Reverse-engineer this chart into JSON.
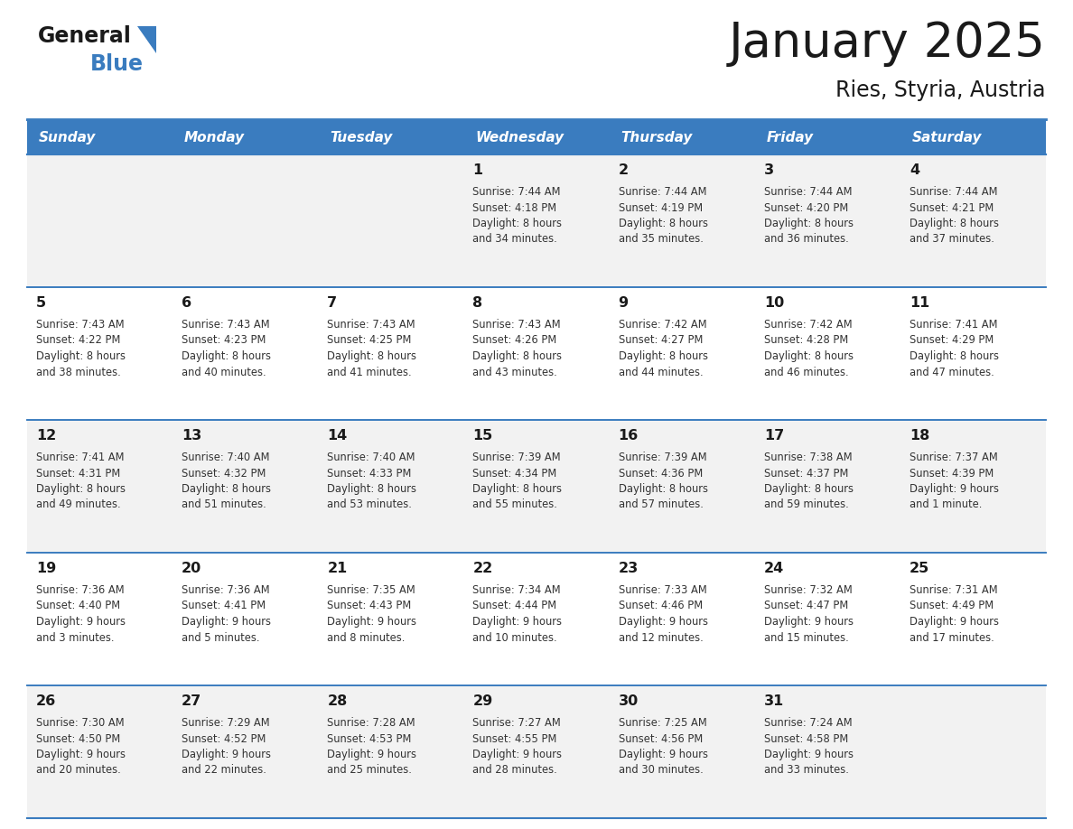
{
  "title": "January 2025",
  "subtitle": "Ries, Styria, Austria",
  "header_color": "#3a7cbf",
  "header_text_color": "#ffffff",
  "day_names": [
    "Sunday",
    "Monday",
    "Tuesday",
    "Wednesday",
    "Thursday",
    "Friday",
    "Saturday"
  ],
  "weeks": [
    [
      {
        "day": null,
        "sunrise": null,
        "sunset": null,
        "daylight_line1": null,
        "daylight_line2": null
      },
      {
        "day": null,
        "sunrise": null,
        "sunset": null,
        "daylight_line1": null,
        "daylight_line2": null
      },
      {
        "day": null,
        "sunrise": null,
        "sunset": null,
        "daylight_line1": null,
        "daylight_line2": null
      },
      {
        "day": 1,
        "sunrise": "7:44 AM",
        "sunset": "4:18 PM",
        "daylight_line1": "Daylight: 8 hours",
        "daylight_line2": "and 34 minutes."
      },
      {
        "day": 2,
        "sunrise": "7:44 AM",
        "sunset": "4:19 PM",
        "daylight_line1": "Daylight: 8 hours",
        "daylight_line2": "and 35 minutes."
      },
      {
        "day": 3,
        "sunrise": "7:44 AM",
        "sunset": "4:20 PM",
        "daylight_line1": "Daylight: 8 hours",
        "daylight_line2": "and 36 minutes."
      },
      {
        "day": 4,
        "sunrise": "7:44 AM",
        "sunset": "4:21 PM",
        "daylight_line1": "Daylight: 8 hours",
        "daylight_line2": "and 37 minutes."
      }
    ],
    [
      {
        "day": 5,
        "sunrise": "7:43 AM",
        "sunset": "4:22 PM",
        "daylight_line1": "Daylight: 8 hours",
        "daylight_line2": "and 38 minutes."
      },
      {
        "day": 6,
        "sunrise": "7:43 AM",
        "sunset": "4:23 PM",
        "daylight_line1": "Daylight: 8 hours",
        "daylight_line2": "and 40 minutes."
      },
      {
        "day": 7,
        "sunrise": "7:43 AM",
        "sunset": "4:25 PM",
        "daylight_line1": "Daylight: 8 hours",
        "daylight_line2": "and 41 minutes."
      },
      {
        "day": 8,
        "sunrise": "7:43 AM",
        "sunset": "4:26 PM",
        "daylight_line1": "Daylight: 8 hours",
        "daylight_line2": "and 43 minutes."
      },
      {
        "day": 9,
        "sunrise": "7:42 AM",
        "sunset": "4:27 PM",
        "daylight_line1": "Daylight: 8 hours",
        "daylight_line2": "and 44 minutes."
      },
      {
        "day": 10,
        "sunrise": "7:42 AM",
        "sunset": "4:28 PM",
        "daylight_line1": "Daylight: 8 hours",
        "daylight_line2": "and 46 minutes."
      },
      {
        "day": 11,
        "sunrise": "7:41 AM",
        "sunset": "4:29 PM",
        "daylight_line1": "Daylight: 8 hours",
        "daylight_line2": "and 47 minutes."
      }
    ],
    [
      {
        "day": 12,
        "sunrise": "7:41 AM",
        "sunset": "4:31 PM",
        "daylight_line1": "Daylight: 8 hours",
        "daylight_line2": "and 49 minutes."
      },
      {
        "day": 13,
        "sunrise": "7:40 AM",
        "sunset": "4:32 PM",
        "daylight_line1": "Daylight: 8 hours",
        "daylight_line2": "and 51 minutes."
      },
      {
        "day": 14,
        "sunrise": "7:40 AM",
        "sunset": "4:33 PM",
        "daylight_line1": "Daylight: 8 hours",
        "daylight_line2": "and 53 minutes."
      },
      {
        "day": 15,
        "sunrise": "7:39 AM",
        "sunset": "4:34 PM",
        "daylight_line1": "Daylight: 8 hours",
        "daylight_line2": "and 55 minutes."
      },
      {
        "day": 16,
        "sunrise": "7:39 AM",
        "sunset": "4:36 PM",
        "daylight_line1": "Daylight: 8 hours",
        "daylight_line2": "and 57 minutes."
      },
      {
        "day": 17,
        "sunrise": "7:38 AM",
        "sunset": "4:37 PM",
        "daylight_line1": "Daylight: 8 hours",
        "daylight_line2": "and 59 minutes."
      },
      {
        "day": 18,
        "sunrise": "7:37 AM",
        "sunset": "4:39 PM",
        "daylight_line1": "Daylight: 9 hours",
        "daylight_line2": "and 1 minute."
      }
    ],
    [
      {
        "day": 19,
        "sunrise": "7:36 AM",
        "sunset": "4:40 PM",
        "daylight_line1": "Daylight: 9 hours",
        "daylight_line2": "and 3 minutes."
      },
      {
        "day": 20,
        "sunrise": "7:36 AM",
        "sunset": "4:41 PM",
        "daylight_line1": "Daylight: 9 hours",
        "daylight_line2": "and 5 minutes."
      },
      {
        "day": 21,
        "sunrise": "7:35 AM",
        "sunset": "4:43 PM",
        "daylight_line1": "Daylight: 9 hours",
        "daylight_line2": "and 8 minutes."
      },
      {
        "day": 22,
        "sunrise": "7:34 AM",
        "sunset": "4:44 PM",
        "daylight_line1": "Daylight: 9 hours",
        "daylight_line2": "and 10 minutes."
      },
      {
        "day": 23,
        "sunrise": "7:33 AM",
        "sunset": "4:46 PM",
        "daylight_line1": "Daylight: 9 hours",
        "daylight_line2": "and 12 minutes."
      },
      {
        "day": 24,
        "sunrise": "7:32 AM",
        "sunset": "4:47 PM",
        "daylight_line1": "Daylight: 9 hours",
        "daylight_line2": "and 15 minutes."
      },
      {
        "day": 25,
        "sunrise": "7:31 AM",
        "sunset": "4:49 PM",
        "daylight_line1": "Daylight: 9 hours",
        "daylight_line2": "and 17 minutes."
      }
    ],
    [
      {
        "day": 26,
        "sunrise": "7:30 AM",
        "sunset": "4:50 PM",
        "daylight_line1": "Daylight: 9 hours",
        "daylight_line2": "and 20 minutes."
      },
      {
        "day": 27,
        "sunrise": "7:29 AM",
        "sunset": "4:52 PM",
        "daylight_line1": "Daylight: 9 hours",
        "daylight_line2": "and 22 minutes."
      },
      {
        "day": 28,
        "sunrise": "7:28 AM",
        "sunset": "4:53 PM",
        "daylight_line1": "Daylight: 9 hours",
        "daylight_line2": "and 25 minutes."
      },
      {
        "day": 29,
        "sunrise": "7:27 AM",
        "sunset": "4:55 PM",
        "daylight_line1": "Daylight: 9 hours",
        "daylight_line2": "and 28 minutes."
      },
      {
        "day": 30,
        "sunrise": "7:25 AM",
        "sunset": "4:56 PM",
        "daylight_line1": "Daylight: 9 hours",
        "daylight_line2": "and 30 minutes."
      },
      {
        "day": 31,
        "sunrise": "7:24 AM",
        "sunset": "4:58 PM",
        "daylight_line1": "Daylight: 9 hours",
        "daylight_line2": "and 33 minutes."
      },
      {
        "day": null,
        "sunrise": null,
        "sunset": null,
        "daylight_line1": null,
        "daylight_line2": null
      }
    ]
  ],
  "week0_bg": "#f2f2f2",
  "week1_bg": "#ffffff",
  "week2_bg": "#f2f2f2",
  "week3_bg": "#ffffff",
  "week4_bg": "#f2f2f2",
  "row_separator_color": "#3a7cbf",
  "day_number_color": "#1a1a1a",
  "info_text_color": "#333333",
  "logo_general_color": "#1a1a1a",
  "logo_blue_color": "#3a7cbf",
  "title_color": "#1a1a1a",
  "subtitle_color": "#1a1a1a"
}
